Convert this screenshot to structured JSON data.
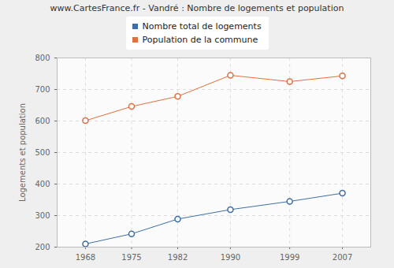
{
  "chart_data": {
    "type": "line",
    "title": "www.CartesFrance.fr - Vandré : Nombre de logements et population",
    "y_label": "Logements et population",
    "x": [
      1968,
      1975,
      1982,
      1990,
      1999,
      2007
    ],
    "series": [
      {
        "name": "Nombre total de logements",
        "color": "#3d6fa5",
        "values": [
          210,
          242,
          289,
          319,
          345,
          371
        ]
      },
      {
        "name": "Population de la commune",
        "color": "#e0703f",
        "values": [
          601,
          646,
          678,
          745,
          725,
          743
        ]
      }
    ],
    "xlim": [
      1963.7,
      2011.3
    ],
    "xticks": [
      1968,
      1975,
      1982,
      1990,
      1999,
      2007
    ],
    "ylim": [
      200,
      800
    ],
    "yticks": [
      200,
      300,
      400,
      500,
      600,
      700,
      800
    ],
    "grid": true,
    "marker": "circle",
    "legend": "top"
  }
}
